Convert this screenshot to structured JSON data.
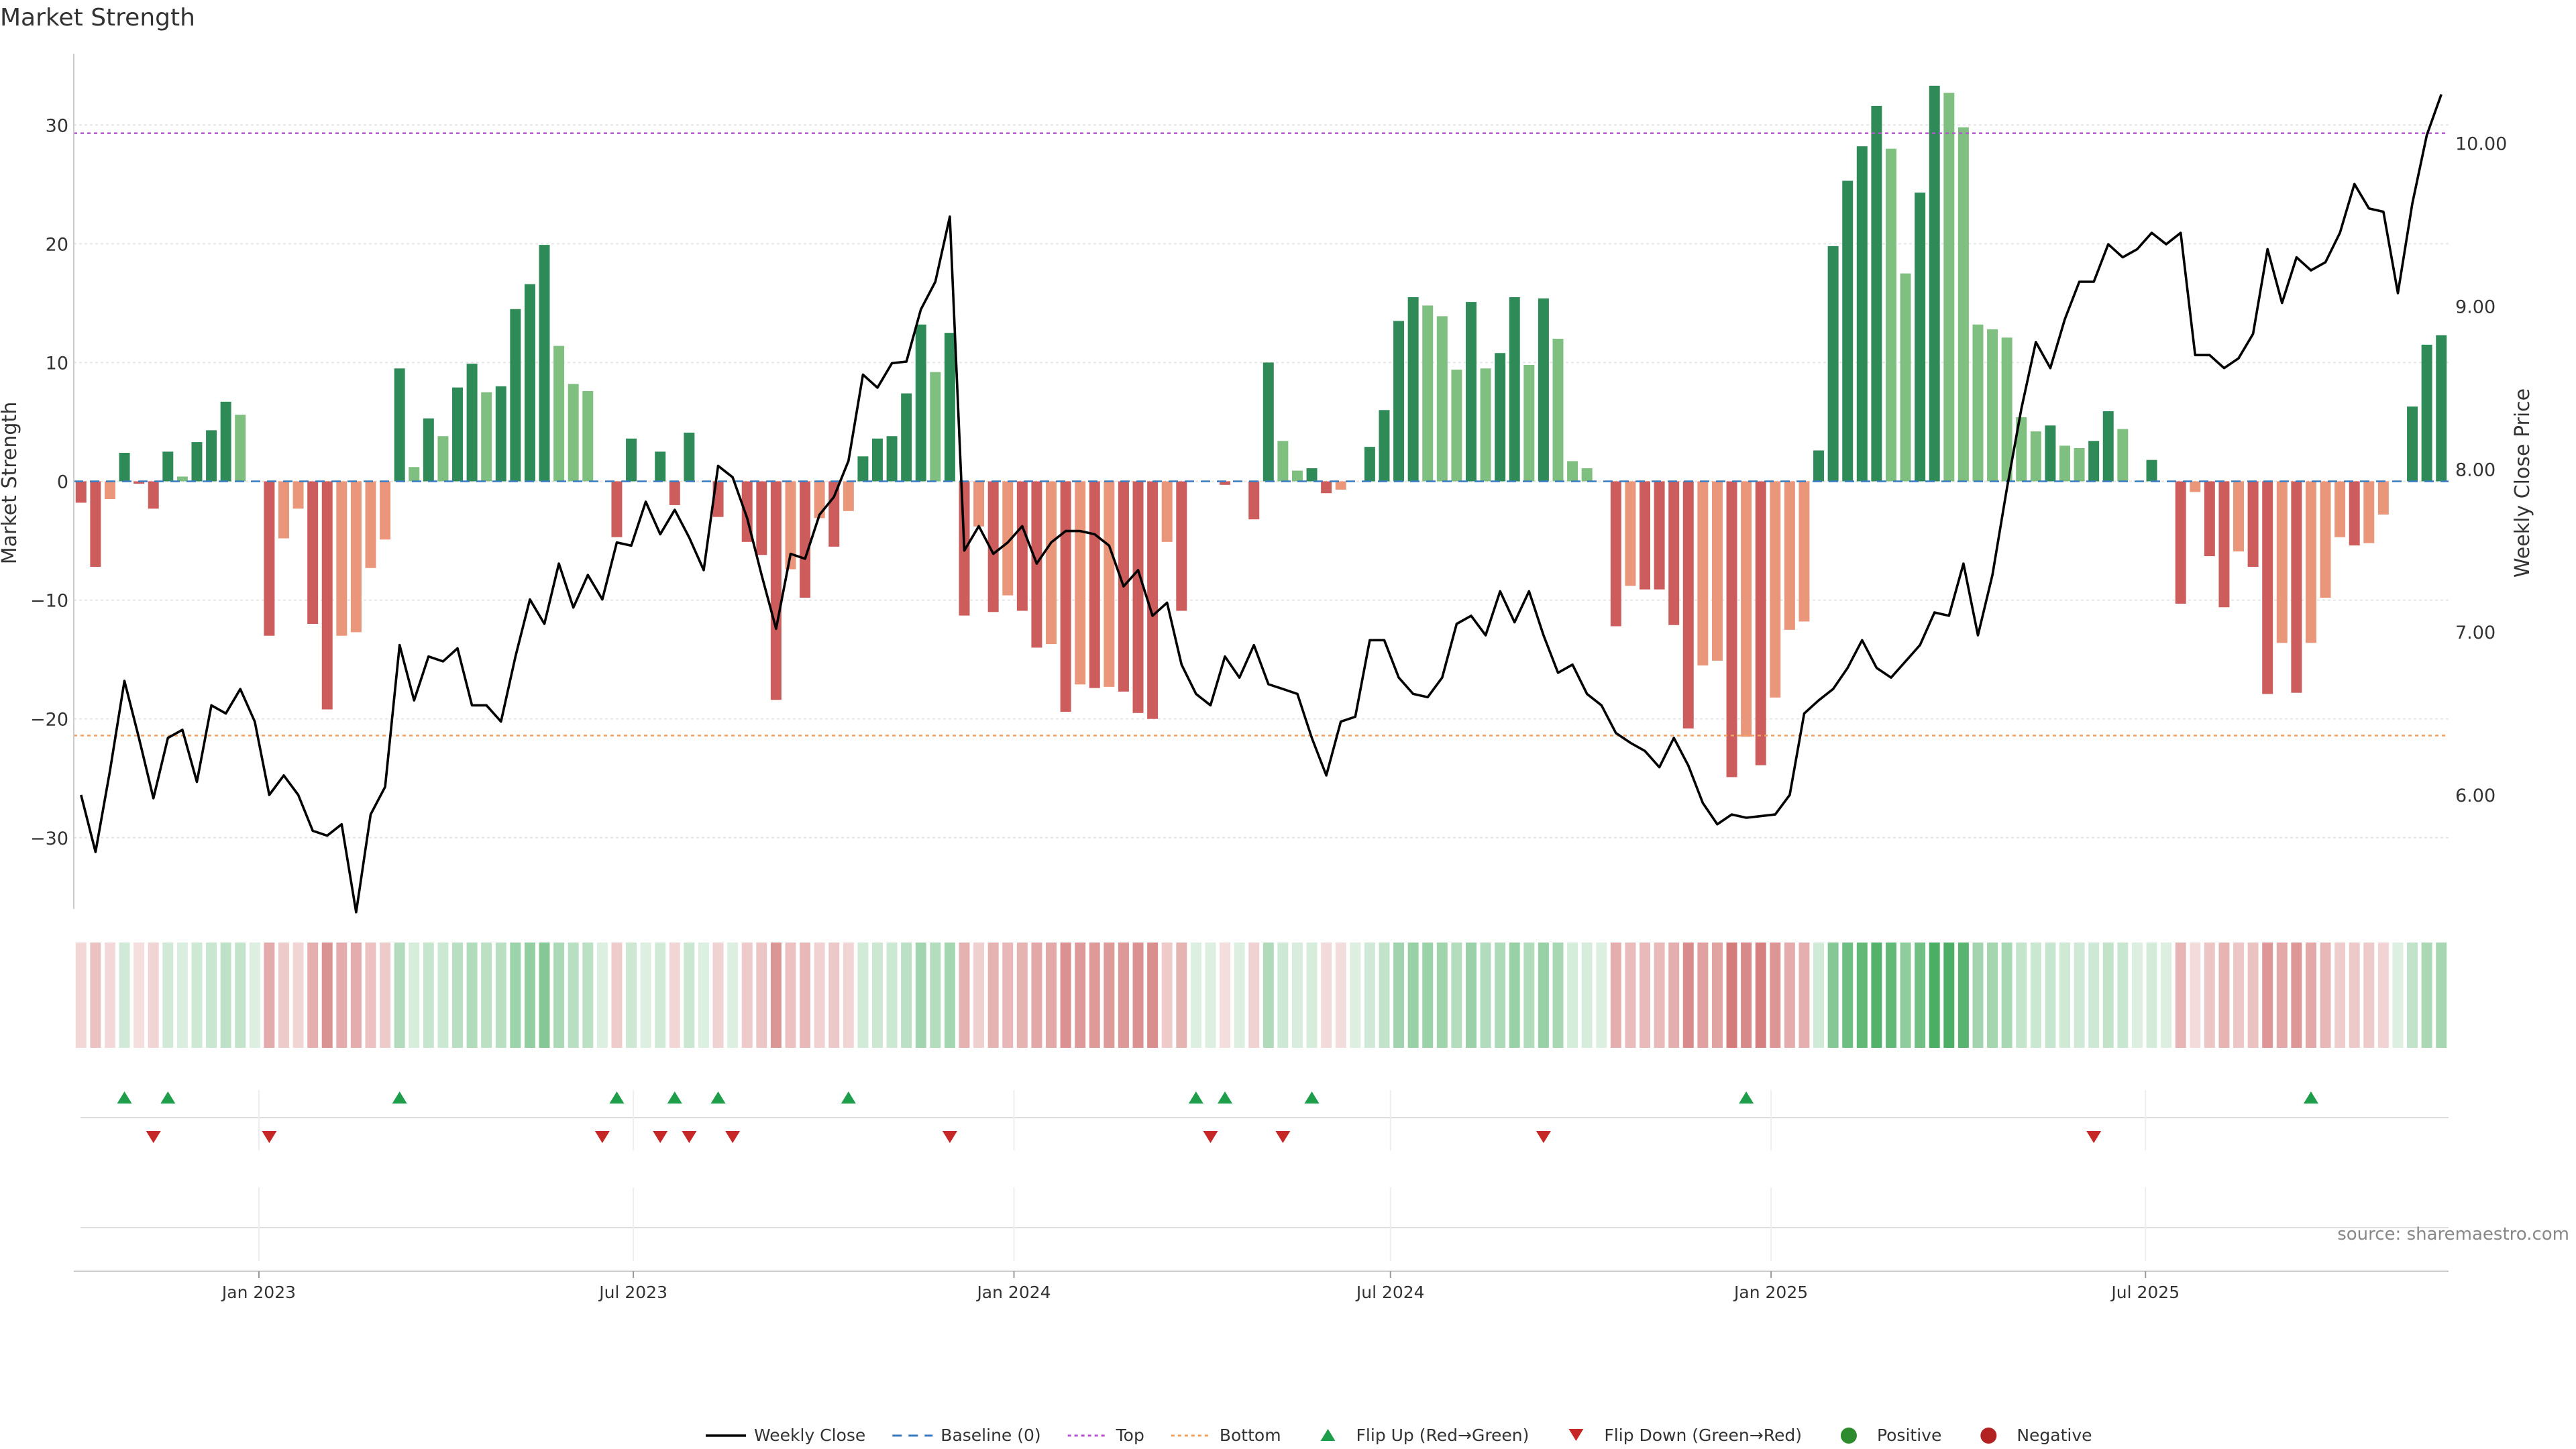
{
  "title": "Market Strength",
  "source_text": "source: sharemaestro.com",
  "colors": {
    "pos_strong": "#2e8b57",
    "pos_light": "#7fbf7f",
    "neg_strong": "#cd5c5c",
    "neg_light": "#e9967a",
    "price_line": "#000000",
    "baseline": "#3a7bbf",
    "top_line": "#b455cf",
    "bottom_line": "#f0a060",
    "flip_up": "#1e9e4a",
    "flip_down": "#c62828",
    "positive": "#2e8b2e",
    "negative": "#b22222"
  },
  "chart_data": {
    "type": "bar+line",
    "start_date": "2022-10-07",
    "interval_days": 7,
    "left_axis": {
      "label": "Market Strength",
      "ylim": [
        -36,
        36
      ],
      "ticks": [
        -30,
        -20,
        -10,
        0,
        10,
        20,
        30
      ]
    },
    "right_axis": {
      "label": "Weekly Close Price",
      "ylim": [
        5.3,
        10.55
      ],
      "ticks": [
        6.0,
        7.0,
        8.0,
        9.0,
        10.0
      ],
      "tick_labels": [
        "6.00",
        "7.00",
        "8.00",
        "9.00",
        "10.00"
      ]
    },
    "x_ticks": [
      {
        "date": "2023-01-01",
        "label": "Jan 2023"
      },
      {
        "date": "2023-07-01",
        "label": "Jul 2023"
      },
      {
        "date": "2024-01-01",
        "label": "Jan 2024"
      },
      {
        "date": "2024-07-01",
        "label": "Jul 2024"
      },
      {
        "date": "2025-01-01",
        "label": "Jan 2025"
      },
      {
        "date": "2025-07-01",
        "label": "Jul 2025"
      }
    ],
    "top_level": 29.3,
    "bottom_level": -21.4,
    "strength": [
      -1.8,
      -7.2,
      -1.5,
      2.4,
      -0.2,
      -2.3,
      2.5,
      0.4,
      3.3,
      4.3,
      6.7,
      5.6,
      0,
      -13,
      -4.8,
      -2.3,
      -12,
      -19.2,
      -13,
      -12.7,
      -7.3,
      -4.9,
      9.5,
      1.2,
      5.3,
      3.8,
      7.9,
      9.9,
      7.5,
      8,
      14.5,
      16.6,
      19.9,
      11.4,
      8.2,
      7.6,
      0,
      -4.7,
      3.6,
      0,
      2.5,
      -2,
      4.1,
      0,
      -3,
      0,
      -5.1,
      -6.2,
      -18.4,
      -7.4,
      -9.8,
      -3.1,
      -5.5,
      -2.5,
      2.1,
      3.6,
      3.8,
      7.4,
      13.2,
      9.2,
      12.5,
      -11.3,
      -3.8,
      -11,
      -9.6,
      -10.9,
      -14,
      -13.7,
      -19.4,
      -17.1,
      -17.4,
      -17.3,
      -17.7,
      -19.5,
      -20,
      -5.1,
      -10.9,
      0,
      0,
      -0.3,
      0,
      -3.2,
      10,
      3.4,
      0.9,
      1.1,
      -1,
      -0.7,
      0,
      2.9,
      6,
      13.5,
      15.5,
      14.8,
      13.9,
      9.4,
      15.1,
      9.5,
      10.8,
      15.5,
      9.8,
      15.4,
      12,
      1.7,
      1.1,
      0,
      -12.2,
      -8.8,
      -9.1,
      -9.1,
      -12.1,
      -20.8,
      -15.5,
      -15.1,
      -24.9,
      -21.5,
      -23.9,
      -18.2,
      -12.5,
      -11.8,
      2.6,
      19.8,
      25.3,
      28.2,
      31.6,
      28,
      17.5,
      24.3,
      33.3,
      32.7,
      29.8,
      13.2,
      12.8,
      12.1,
      5.4,
      4.2,
      4.7,
      3,
      2.8,
      3.4,
      5.9,
      4.4,
      0,
      1.8,
      0,
      -10.3,
      -0.9,
      -6.3,
      -10.6,
      -5.9,
      -7.2,
      -17.9,
      -13.6,
      -17.8,
      -13.6,
      -9.8,
      -4.7,
      -5.4,
      -5.2,
      -2.8,
      0,
      6.3,
      11.5,
      12.3
    ],
    "price": [
      6.0,
      5.65,
      6.15,
      6.7,
      6.35,
      5.98,
      6.35,
      6.4,
      6.08,
      6.55,
      6.5,
      6.65,
      6.45,
      6.0,
      6.12,
      6.0,
      5.78,
      5.75,
      5.82,
      5.28,
      5.88,
      6.05,
      6.92,
      6.58,
      6.85,
      6.82,
      6.9,
      6.55,
      6.55,
      6.45,
      6.85,
      7.2,
      7.05,
      7.42,
      7.15,
      7.35,
      7.2,
      7.55,
      7.53,
      7.8,
      7.6,
      7.75,
      7.58,
      7.38,
      8.02,
      7.95,
      7.7,
      7.35,
      7.02,
      7.48,
      7.45,
      7.72,
      7.83,
      8.05,
      8.58,
      8.5,
      8.65,
      8.66,
      8.98,
      9.15,
      9.55,
      7.5,
      7.65,
      7.48,
      7.55,
      7.65,
      7.42,
      7.55,
      7.62,
      7.62,
      7.6,
      7.53,
      7.28,
      7.38,
      7.1,
      7.18,
      6.8,
      6.62,
      6.55,
      6.85,
      6.72,
      6.92,
      6.68,
      6.65,
      6.62,
      6.35,
      6.12,
      6.45,
      6.48,
      6.95,
      6.95,
      6.72,
      6.62,
      6.6,
      6.72,
      7.05,
      7.1,
      6.98,
      7.25,
      7.06,
      7.25,
      6.98,
      6.75,
      6.8,
      6.62,
      6.55,
      6.38,
      6.32,
      6.27,
      6.17,
      6.35,
      6.18,
      5.95,
      5.82,
      5.88,
      5.86,
      5.87,
      5.88,
      6.0,
      6.5,
      6.58,
      6.65,
      6.78,
      6.95,
      6.78,
      6.72,
      6.82,
      6.92,
      7.12,
      7.1,
      7.42,
      6.98,
      7.35,
      7.88,
      8.37,
      8.78,
      8.62,
      8.92,
      9.15,
      9.15,
      9.38,
      9.3,
      9.35,
      9.45,
      9.38,
      9.45,
      8.7,
      8.7,
      8.62,
      8.68,
      8.83,
      9.35,
      9.02,
      9.3,
      9.22,
      9.27,
      9.45,
      9.75,
      9.6,
      9.58,
      9.08,
      9.63,
      10.05,
      10.3
    ],
    "flip_up_weeks": [
      3,
      6,
      22,
      37,
      41,
      44,
      53,
      77,
      79,
      85,
      115,
      154
    ],
    "flip_down_weeks": [
      5,
      13,
      36,
      40,
      42,
      45,
      60,
      78,
      83,
      101,
      139
    ],
    "series": [
      {
        "name": "Weekly Close"
      },
      {
        "name": "Baseline (0)"
      },
      {
        "name": "Top"
      },
      {
        "name": "Bottom"
      },
      {
        "name": "Flip Up (Red→Green)"
      },
      {
        "name": "Flip Down (Green→Red)"
      },
      {
        "name": "Positive"
      },
      {
        "name": "Negative"
      }
    ],
    "legend_position": "bottom-center"
  }
}
